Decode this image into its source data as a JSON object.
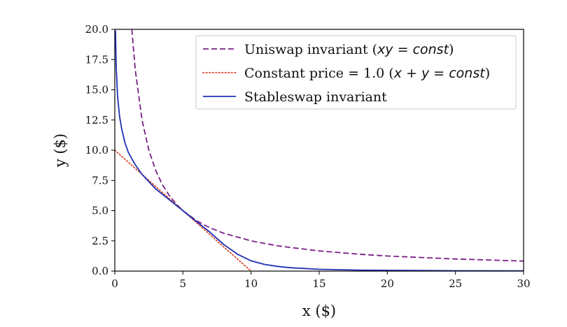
{
  "chart_data": {
    "type": "line",
    "xlabel": "x ($)",
    "ylabel": "y ($)",
    "xlim": [
      0,
      30
    ],
    "ylim": [
      0,
      20
    ],
    "xticks": [
      0,
      5,
      10,
      15,
      20,
      25,
      30
    ],
    "yticks": [
      0.0,
      2.5,
      5.0,
      7.5,
      10.0,
      12.5,
      15.0,
      17.5,
      20.0
    ],
    "xtick_labels": [
      "0",
      "5",
      "10",
      "15",
      "20",
      "25",
      "30"
    ],
    "ytick_labels": [
      "0.0",
      "2.5",
      "5.0",
      "7.5",
      "10.0",
      "12.5",
      "15.0",
      "17.5",
      "20.0"
    ],
    "grid": false,
    "legend_position": "top-right",
    "series": [
      {
        "name": "Uniswap invariant (xy = const)",
        "name_parts": [
          "Uniswap invariant (",
          "xy",
          " = ",
          "const",
          ")"
        ],
        "style": "dashed",
        "color": "#7b1f87",
        "x": [
          1.25,
          1.5,
          2,
          2.5,
          3,
          3.5,
          4,
          4.5,
          5,
          6,
          7,
          8,
          10,
          12,
          15,
          18,
          20,
          25,
          30
        ],
        "y": [
          20.0,
          16.67,
          12.5,
          10.0,
          8.33,
          7.14,
          6.25,
          5.56,
          5.0,
          4.17,
          3.57,
          3.13,
          2.5,
          2.08,
          1.67,
          1.39,
          1.25,
          1.0,
          0.83
        ]
      },
      {
        "name": "Constant price = 1.0 (x + y = const)",
        "name_parts": [
          "Constant price = 1.0 (",
          "x",
          " + ",
          "y",
          " = ",
          "const",
          ")"
        ],
        "style": "dotted",
        "color": "#d9452b",
        "x": [
          0,
          10
        ],
        "y": [
          10,
          0
        ]
      },
      {
        "name": "Stableswap invariant",
        "name_parts": [
          "Stableswap invariant"
        ],
        "style": "solid",
        "color": "#1f2fb4",
        "x": [
          0.05,
          0.1,
          0.2,
          0.35,
          0.5,
          0.75,
          1.0,
          1.5,
          2.0,
          3.0,
          4.0,
          5.0,
          6.0,
          7.0,
          8.0,
          9.0,
          10.0,
          11.0,
          12.0,
          13.0,
          15.0,
          18.0,
          20.0,
          25.0,
          30.0
        ],
        "y": [
          19.9,
          17.0,
          14.5,
          12.8,
          11.8,
          10.6,
          9.8,
          8.8,
          8.0,
          6.8,
          5.9,
          5.0,
          4.1,
          3.2,
          2.2,
          1.4,
          0.85,
          0.55,
          0.38,
          0.27,
          0.15,
          0.08,
          0.06,
          0.03,
          0.02
        ]
      }
    ]
  }
}
